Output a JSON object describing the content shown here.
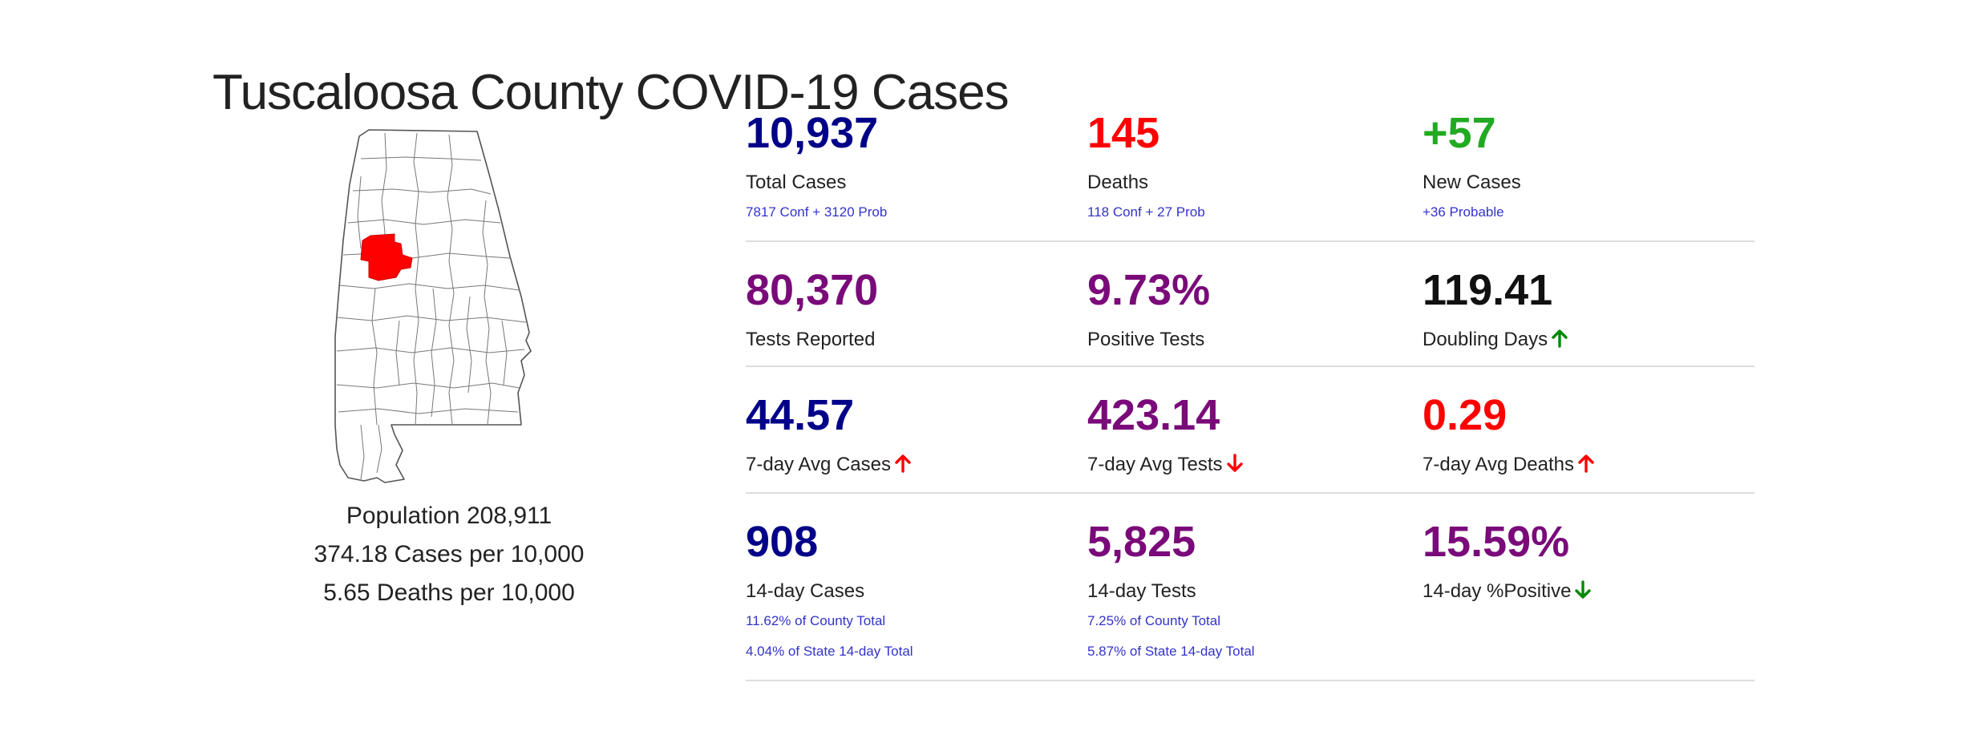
{
  "page": {
    "title": "Tuscaloosa County COVID-19 Cases"
  },
  "county": {
    "population": "Population 208,911",
    "cases_per_10k": "374.18 Cases per 10,000",
    "deaths_per_10k": "5.65 Deaths per 10,000",
    "highlight_color": "#ff0000"
  },
  "colors": {
    "navy": "#000088",
    "red": "#ff0000",
    "green": "#22aa22",
    "purple": "#7a0a7a",
    "black": "#111111",
    "detail_blue": "#3333cc",
    "arrow_green": "#008800",
    "arrow_red": "#ff0000"
  },
  "stats": {
    "row1": {
      "total_cases": {
        "value": "10,937",
        "label": "Total Cases",
        "detail": "7817 Conf + 3120 Prob"
      },
      "deaths": {
        "value": "145",
        "label": "Deaths",
        "detail": "118 Conf + 27 Prob"
      },
      "new_cases": {
        "value": "+57",
        "label": "New Cases",
        "detail": "+36 Probable"
      }
    },
    "row2": {
      "tests_reported": {
        "value": "80,370",
        "label": "Tests Reported"
      },
      "positive_tests": {
        "value": "9.73%",
        "label": "Positive Tests"
      },
      "doubling_days": {
        "value": "119.41",
        "label": "Doubling Days",
        "trend_icon": "arrow-up-icon",
        "trend_color": "green"
      }
    },
    "row3": {
      "avg_cases_7day": {
        "value": "44.57",
        "label": "7-day Avg Cases",
        "trend_icon": "arrow-up-icon",
        "trend_color": "red"
      },
      "avg_tests_7day": {
        "value": "423.14",
        "label": "7-day Avg Tests",
        "trend_icon": "arrow-down-icon",
        "trend_color": "red"
      },
      "avg_deaths_7day": {
        "value": "0.29",
        "label": "7-day Avg Deaths",
        "trend_icon": "arrow-up-icon",
        "trend_color": "red"
      }
    },
    "row4": {
      "cases_14day": {
        "value": "908",
        "label": "14-day Cases",
        "detail": "11.62% of County Total",
        "detail2": "4.04% of State 14-day Total"
      },
      "tests_14day": {
        "value": "5,825",
        "label": "14-day Tests",
        "detail": "7.25% of County Total",
        "detail2": "5.87% of State 14-day Total"
      },
      "positive_14day": {
        "value": "15.59%",
        "label": "14-day %Positive",
        "trend_icon": "arrow-down-icon",
        "trend_color": "green"
      }
    }
  }
}
